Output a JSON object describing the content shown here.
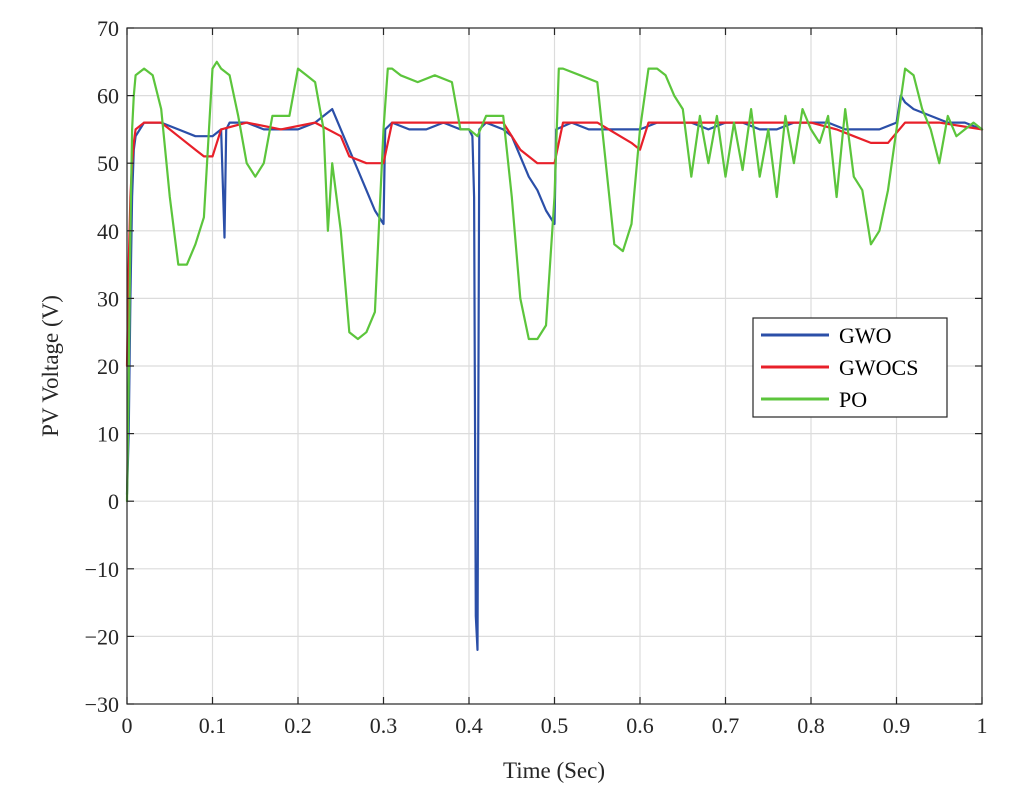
{
  "chart_data": {
    "type": "line",
    "title": "",
    "xlabel": "Time (Sec)",
    "ylabel": "PV Voltage (V)",
    "xlim": [
      0,
      1
    ],
    "ylim": [
      -30,
      70
    ],
    "xticks": [
      0,
      0.1,
      0.2,
      0.3,
      0.4,
      0.5,
      0.6,
      0.7,
      0.8,
      0.9,
      1
    ],
    "xtick_labels": [
      "0",
      "0.1",
      "0.2",
      "0.3",
      "0.4",
      "0.5",
      "0.6",
      "0.7",
      "0.8",
      "0.9",
      "1"
    ],
    "yticks": [
      -30,
      -20,
      -10,
      0,
      10,
      20,
      30,
      40,
      50,
      60,
      70
    ],
    "ytick_labels": [
      "−30",
      "−20",
      "−10",
      "0",
      "10",
      "20",
      "30",
      "40",
      "50",
      "60",
      "70"
    ],
    "grid": true,
    "legend_position": "center-right",
    "series": [
      {
        "name": "GWO",
        "color": "#2b4fa8",
        "x": [
          0,
          0.002,
          0.004,
          0.006,
          0.008,
          0.01,
          0.02,
          0.04,
          0.06,
          0.08,
          0.1,
          0.11,
          0.114,
          0.116,
          0.12,
          0.14,
          0.16,
          0.18,
          0.2,
          0.22,
          0.23,
          0.24,
          0.25,
          0.26,
          0.27,
          0.28,
          0.29,
          0.3,
          0.302,
          0.31,
          0.33,
          0.35,
          0.37,
          0.39,
          0.4,
          0.404,
          0.406,
          0.408,
          0.41,
          0.412,
          0.42,
          0.44,
          0.45,
          0.46,
          0.47,
          0.48,
          0.49,
          0.5,
          0.502,
          0.52,
          0.54,
          0.56,
          0.58,
          0.6,
          0.62,
          0.64,
          0.66,
          0.68,
          0.7,
          0.72,
          0.74,
          0.76,
          0.78,
          0.8,
          0.82,
          0.84,
          0.86,
          0.88,
          0.9,
          0.905,
          0.91,
          0.92,
          0.94,
          0.96,
          0.98,
          1.0
        ],
        "y": [
          1,
          10,
          30,
          45,
          52,
          54,
          56,
          56,
          55,
          54,
          54,
          55,
          39,
          55,
          56,
          56,
          55,
          55,
          55,
          56,
          57,
          58,
          55,
          52,
          49,
          46,
          43,
          41,
          55,
          56,
          55,
          55,
          56,
          55,
          55,
          54,
          45,
          -17,
          -22,
          55,
          56,
          55,
          54,
          51,
          48,
          46,
          43,
          41,
          55,
          56,
          55,
          55,
          55,
          55,
          56,
          56,
          56,
          55,
          56,
          56,
          55,
          55,
          56,
          56,
          56,
          55,
          55,
          55,
          56,
          60,
          59,
          58,
          57,
          56,
          56,
          55
        ]
      },
      {
        "name": "GWOCS",
        "color": "#e8202a",
        "x": [
          0,
          0.002,
          0.004,
          0.006,
          0.008,
          0.01,
          0.02,
          0.04,
          0.06,
          0.08,
          0.09,
          0.1,
          0.11,
          0.14,
          0.18,
          0.22,
          0.25,
          0.26,
          0.28,
          0.3,
          0.31,
          0.35,
          0.4,
          0.44,
          0.46,
          0.48,
          0.5,
          0.51,
          0.55,
          0.59,
          0.6,
          0.61,
          0.65,
          0.7,
          0.75,
          0.8,
          0.83,
          0.85,
          0.87,
          0.89,
          0.91,
          0.95,
          1.0
        ],
        "y": [
          20,
          35,
          45,
          50,
          53,
          55,
          56,
          56,
          54,
          52,
          51,
          51,
          55,
          56,
          55,
          56,
          54,
          51,
          50,
          50,
          56,
          56,
          56,
          56,
          52,
          50,
          50,
          56,
          56,
          53,
          52,
          56,
          56,
          56,
          56,
          56,
          55,
          54,
          53,
          53,
          56,
          56,
          55
        ]
      },
      {
        "name": "PO",
        "color": "#5cc53c",
        "x": [
          0,
          0.002,
          0.004,
          0.006,
          0.008,
          0.01,
          0.02,
          0.03,
          0.04,
          0.05,
          0.06,
          0.07,
          0.08,
          0.09,
          0.1,
          0.105,
          0.11,
          0.12,
          0.13,
          0.14,
          0.15,
          0.16,
          0.17,
          0.19,
          0.2,
          0.21,
          0.22,
          0.23,
          0.235,
          0.24,
          0.25,
          0.26,
          0.27,
          0.28,
          0.29,
          0.3,
          0.305,
          0.31,
          0.32,
          0.34,
          0.36,
          0.38,
          0.39,
          0.4,
          0.41,
          0.42,
          0.44,
          0.45,
          0.46,
          0.47,
          0.48,
          0.49,
          0.5,
          0.505,
          0.51,
          0.53,
          0.55,
          0.56,
          0.57,
          0.58,
          0.59,
          0.6,
          0.61,
          0.62,
          0.63,
          0.64,
          0.65,
          0.66,
          0.67,
          0.68,
          0.69,
          0.7,
          0.71,
          0.72,
          0.73,
          0.74,
          0.75,
          0.76,
          0.77,
          0.78,
          0.79,
          0.8,
          0.81,
          0.82,
          0.83,
          0.84,
          0.85,
          0.86,
          0.87,
          0.88,
          0.89,
          0.9,
          0.91,
          0.92,
          0.93,
          0.94,
          0.95,
          0.96,
          0.97,
          0.98,
          0.99,
          1.0
        ],
        "y": [
          0,
          18,
          40,
          55,
          60,
          63,
          64,
          63,
          58,
          45,
          35,
          35,
          38,
          42,
          64,
          65,
          64,
          63,
          57,
          50,
          48,
          50,
          57,
          57,
          64,
          63,
          62,
          55,
          40,
          50,
          40,
          25,
          24,
          25,
          28,
          55,
          64,
          64,
          63,
          62,
          63,
          62,
          55,
          55,
          54,
          57,
          57,
          45,
          30,
          24,
          24,
          26,
          45,
          64,
          64,
          63,
          62,
          50,
          38,
          37,
          41,
          55,
          64,
          64,
          63,
          60,
          58,
          48,
          57,
          50,
          57,
          48,
          56,
          49,
          58,
          48,
          55,
          45,
          57,
          50,
          58,
          55,
          53,
          57,
          45,
          58,
          48,
          46,
          38,
          40,
          46,
          55,
          64,
          63,
          58,
          55,
          50,
          57,
          54,
          55,
          56,
          55
        ]
      }
    ]
  }
}
